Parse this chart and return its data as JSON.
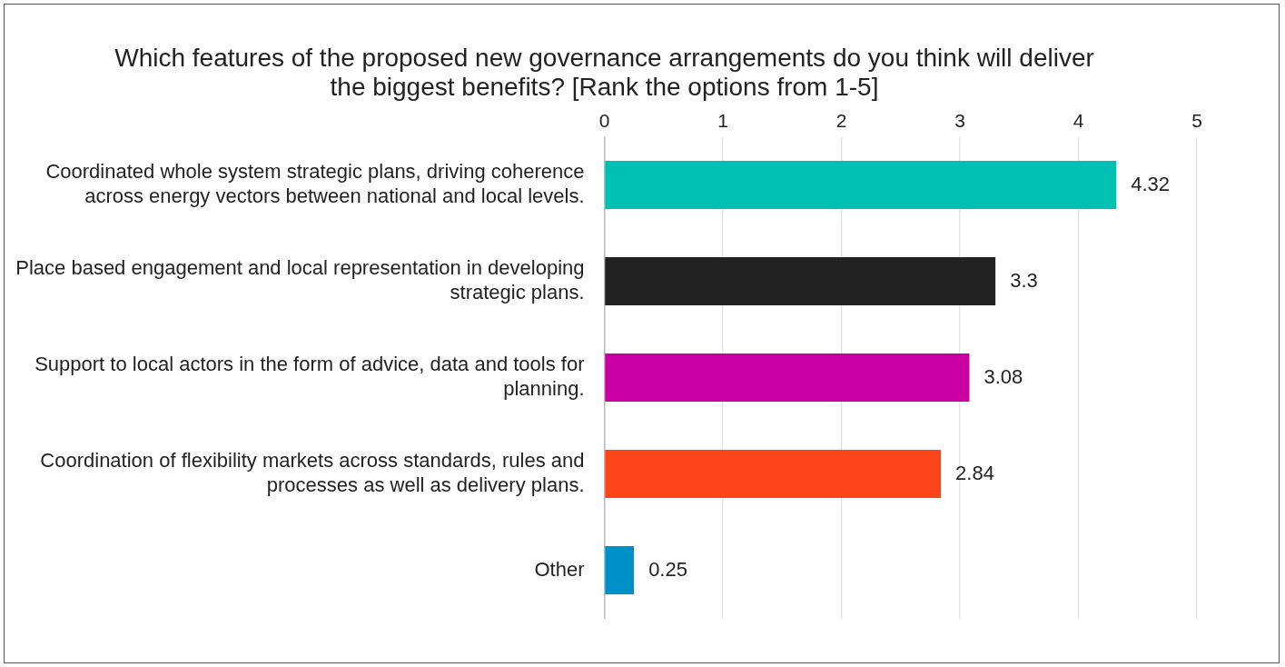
{
  "chart_data": {
    "type": "bar",
    "orientation": "horizontal",
    "title": "Which features of the proposed new governance arrangements do you think will deliver the biggest benefits? [Rank the options from 1-5]",
    "categories": [
      "Coordinated whole system strategic plans, driving coherence across energy vectors between national and local levels.",
      "Place based engagement and local representation in developing strategic plans.",
      "Support to local actors in the form of advice, data and tools for planning.",
      "Coordination of flexibility markets across standards, rules and processes as well as delivery plans.",
      "Other"
    ],
    "values": [
      4.32,
      3.3,
      3.08,
      2.84,
      0.25
    ],
    "colors": [
      "#00bfb3",
      "#222222",
      "#c800a1",
      "#fc4619",
      "#0090c8"
    ],
    "xlim": [
      0,
      5
    ],
    "xticks": [
      0,
      1,
      2,
      3,
      4,
      5
    ],
    "grid": "x",
    "data_labels": true,
    "legend": false
  }
}
